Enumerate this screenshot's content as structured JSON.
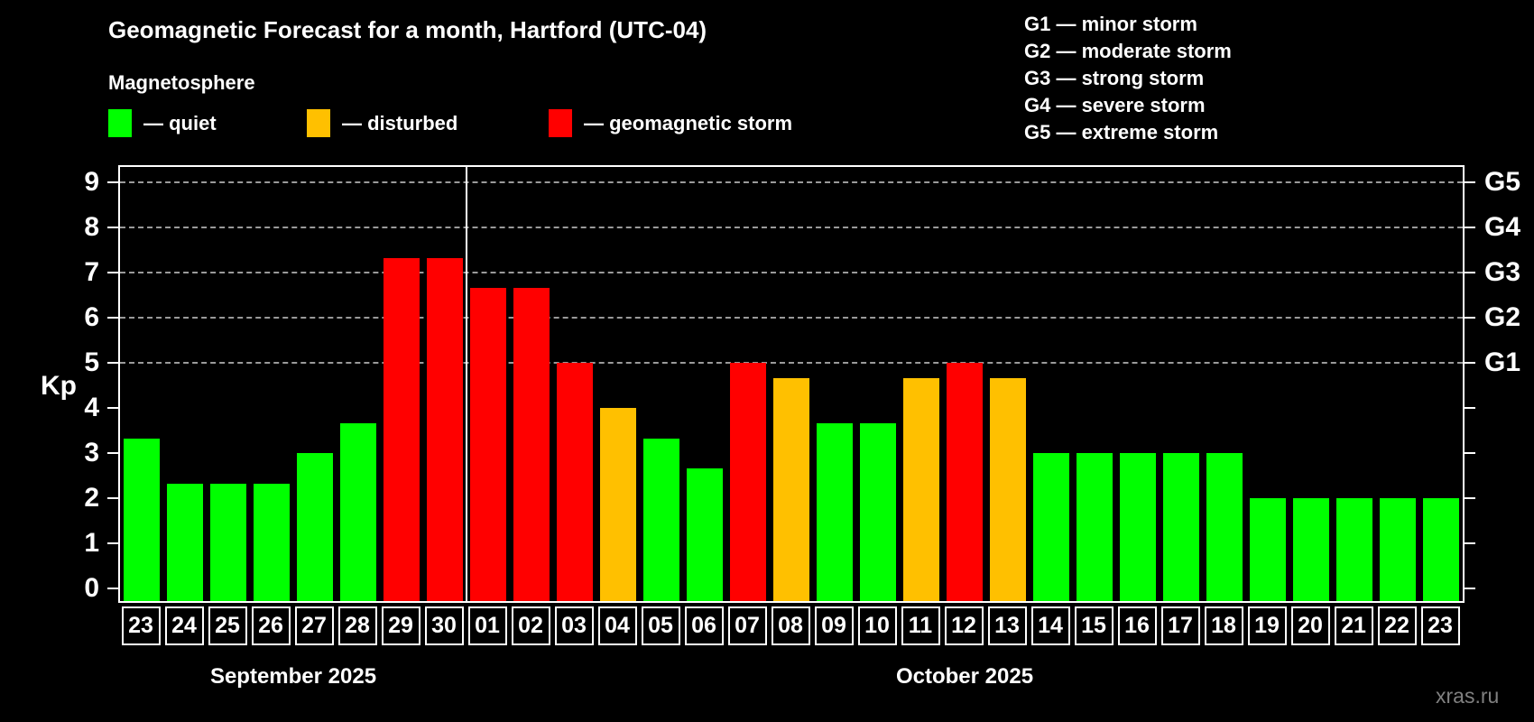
{
  "watermark": "xras.ru",
  "chart_data": {
    "type": "bar",
    "title": "Geomagnetic Forecast for a month, Hartford (UTC-04)",
    "subtitle": "Magnetosphere",
    "ylabel": "Kp",
    "ylim": [
      0,
      9.4
    ],
    "yticks": [
      0,
      1,
      2,
      3,
      4,
      5,
      6,
      7,
      8,
      9
    ],
    "gridlines_at_kp": [
      5,
      6,
      7,
      8,
      9
    ],
    "grid": "horizontal dashed lines at G-storm levels only",
    "legend_position": "top-left row",
    "legend": [
      {
        "status": "quiet",
        "label": "— quiet"
      },
      {
        "status": "disturbed",
        "label": "— disturbed"
      },
      {
        "status": "storm",
        "label": "— geomagnetic storm"
      }
    ],
    "g_scale_legend": [
      "G1 — minor storm",
      "G2 — moderate storm",
      "G3 — strong storm",
      "G4 — severe storm",
      "G5 — extreme storm"
    ],
    "right_axis_labels": [
      {
        "label": "G1",
        "kp": 5
      },
      {
        "label": "G2",
        "kp": 6
      },
      {
        "label": "G3",
        "kp": 7
      },
      {
        "label": "G4",
        "kp": 8
      },
      {
        "label": "G5",
        "kp": 9
      }
    ],
    "months": [
      {
        "label": "September 2025",
        "start_index": 0,
        "end_index": 7
      },
      {
        "label": "October 2025",
        "start_index": 8,
        "end_index": 30
      }
    ],
    "categories": [
      "23",
      "24",
      "25",
      "26",
      "27",
      "28",
      "29",
      "30",
      "01",
      "02",
      "03",
      "04",
      "05",
      "06",
      "07",
      "08",
      "09",
      "10",
      "11",
      "12",
      "13",
      "14",
      "15",
      "16",
      "17",
      "18",
      "19",
      "20",
      "21",
      "22",
      "23"
    ],
    "values": [
      3.33,
      2.33,
      2.33,
      2.33,
      3.0,
      3.67,
      7.33,
      7.33,
      6.67,
      6.67,
      5.0,
      4.0,
      3.33,
      2.67,
      5.0,
      4.67,
      3.67,
      3.67,
      4.67,
      5.0,
      4.67,
      3.0,
      3.0,
      3.0,
      3.0,
      3.0,
      2.0,
      2.0,
      2.0,
      2.0,
      2.0
    ],
    "statuses": [
      "quiet",
      "quiet",
      "quiet",
      "quiet",
      "quiet",
      "quiet",
      "storm",
      "storm",
      "storm",
      "storm",
      "storm",
      "disturbed",
      "quiet",
      "quiet",
      "storm",
      "disturbed",
      "quiet",
      "quiet",
      "disturbed",
      "storm",
      "disturbed",
      "quiet",
      "quiet",
      "quiet",
      "quiet",
      "quiet",
      "quiet",
      "quiet",
      "quiet",
      "quiet",
      "quiet"
    ],
    "colors": {
      "quiet": "#00ff00",
      "disturbed": "#ffc000",
      "storm": "#ff0000",
      "background": "#000000",
      "axis": "#ffffff",
      "gridline": "#9a9a9a",
      "watermark": "#808080"
    }
  }
}
